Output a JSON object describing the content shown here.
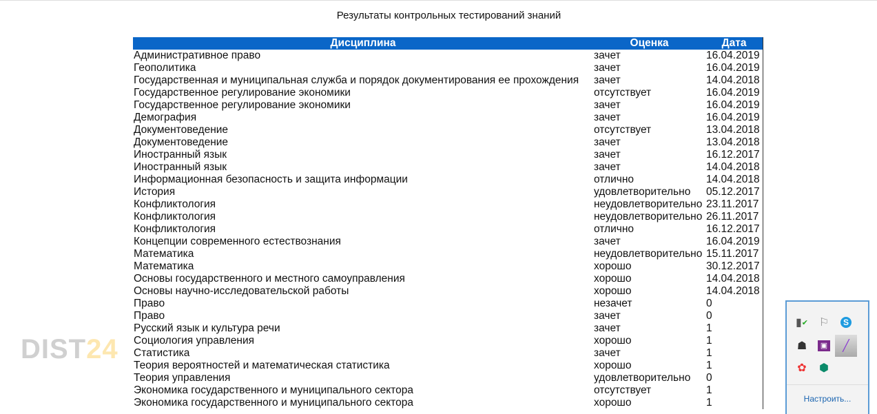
{
  "title": "Результаты контрольных тестирований знаний",
  "table": {
    "headers": [
      "Дисциплина",
      "Оценка",
      "Дата"
    ],
    "rows": [
      [
        "Административное право",
        "зачет",
        "16.04.2019"
      ],
      [
        "Геополитика",
        "зачет",
        "16.04.2019"
      ],
      [
        "Государственная и муниципальная служба и порядок документирования ее прохождения",
        "зачет",
        "14.04.2018"
      ],
      [
        "Государственное регулирование экономики",
        "отсутствует",
        "16.04.2019"
      ],
      [
        "Государственное регулирование экономики",
        "зачет",
        "16.04.2019"
      ],
      [
        "Демография",
        "зачет",
        "16.04.2019"
      ],
      [
        "Документоведение",
        "отсутствует",
        "13.04.2018"
      ],
      [
        "Документоведение",
        "зачет",
        "13.04.2018"
      ],
      [
        "Иностранный язык",
        "зачет",
        "16.12.2017"
      ],
      [
        "Иностранный язык",
        "зачет",
        "14.04.2018"
      ],
      [
        "Информационная безопасность и защита информации",
        "отлично",
        "14.04.2018"
      ],
      [
        "История",
        "удовлетворительно",
        "05.12.2017"
      ],
      [
        "Конфликтология",
        "неудовлетворительно",
        "23.11.2017"
      ],
      [
        "Конфликтология",
        "неудовлетворительно",
        "26.11.2017"
      ],
      [
        "Конфликтология",
        "отлично",
        "16.12.2017"
      ],
      [
        "Концепции современного естествознания",
        "зачет",
        "16.04.2019"
      ],
      [
        "Математика",
        "неудовлетворительно",
        "15.11.2017"
      ],
      [
        "Математика",
        "хорошо",
        "30.12.2017"
      ],
      [
        "Основы государственного и местного самоуправления",
        "хорошо",
        "14.04.2018"
      ],
      [
        "Основы научно-исследовательской работы",
        "хорошо",
        "14.04.2018"
      ],
      [
        "Право",
        "незачет",
        "0"
      ],
      [
        "Право",
        "зачет",
        "0"
      ],
      [
        "Русский язык и культура речи",
        "зачет",
        "1"
      ],
      [
        "Социология управления",
        "хорошо",
        "1"
      ],
      [
        "Статистика",
        "зачет",
        "1"
      ],
      [
        "Теория вероятностей и математическая статистика",
        "хорошо",
        "1"
      ],
      [
        "Теория управления",
        "удовлетворительно",
        "0"
      ],
      [
        "Экономика государственного и муниципального сектора",
        "отсутствует",
        "1"
      ],
      [
        "Экономика государственного и муниципального сектора",
        "хорошо",
        "1"
      ]
    ]
  },
  "watermark": {
    "part1": "DIST",
    "part2": "24"
  },
  "tray": {
    "configure_label": "Настроить...",
    "icons": [
      "usb-safe-remove-icon",
      "action-center-flag-icon",
      "skype-icon",
      "network-icon",
      "onenote-icon",
      "pen-icon",
      "flower-app-icon",
      "kaspersky-shield-icon"
    ]
  }
}
